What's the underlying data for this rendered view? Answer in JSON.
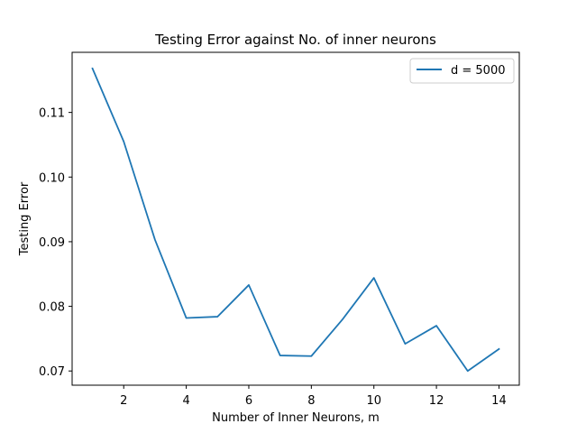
{
  "chart_data": {
    "type": "line",
    "title": "Testing Error against No. of inner neurons",
    "xlabel": "Number of Inner Neurons, m",
    "ylabel": "Testing Error",
    "xlim": [
      0.35,
      14.65
    ],
    "ylim": [
      0.0678,
      0.1193
    ],
    "xticks": [
      2,
      4,
      6,
      8,
      10,
      12,
      14
    ],
    "yticks": [
      0.07,
      0.08,
      0.09,
      0.1,
      0.11
    ],
    "ytick_labels": [
      "0.07",
      "0.08",
      "0.09",
      "0.10",
      "0.11"
    ],
    "x": [
      1,
      2,
      3,
      4,
      5,
      6,
      7,
      8,
      9,
      10,
      11,
      12,
      13,
      14
    ],
    "series": [
      {
        "name": "d = 5000",
        "color": "#1f77b4",
        "values": [
          0.1168,
          0.1055,
          0.0903,
          0.0782,
          0.0784,
          0.0833,
          0.0724,
          0.0723,
          0.078,
          0.0844,
          0.0742,
          0.077,
          0.07,
          0.0734
        ]
      }
    ],
    "legend_position": "upper right",
    "grid": false
  }
}
